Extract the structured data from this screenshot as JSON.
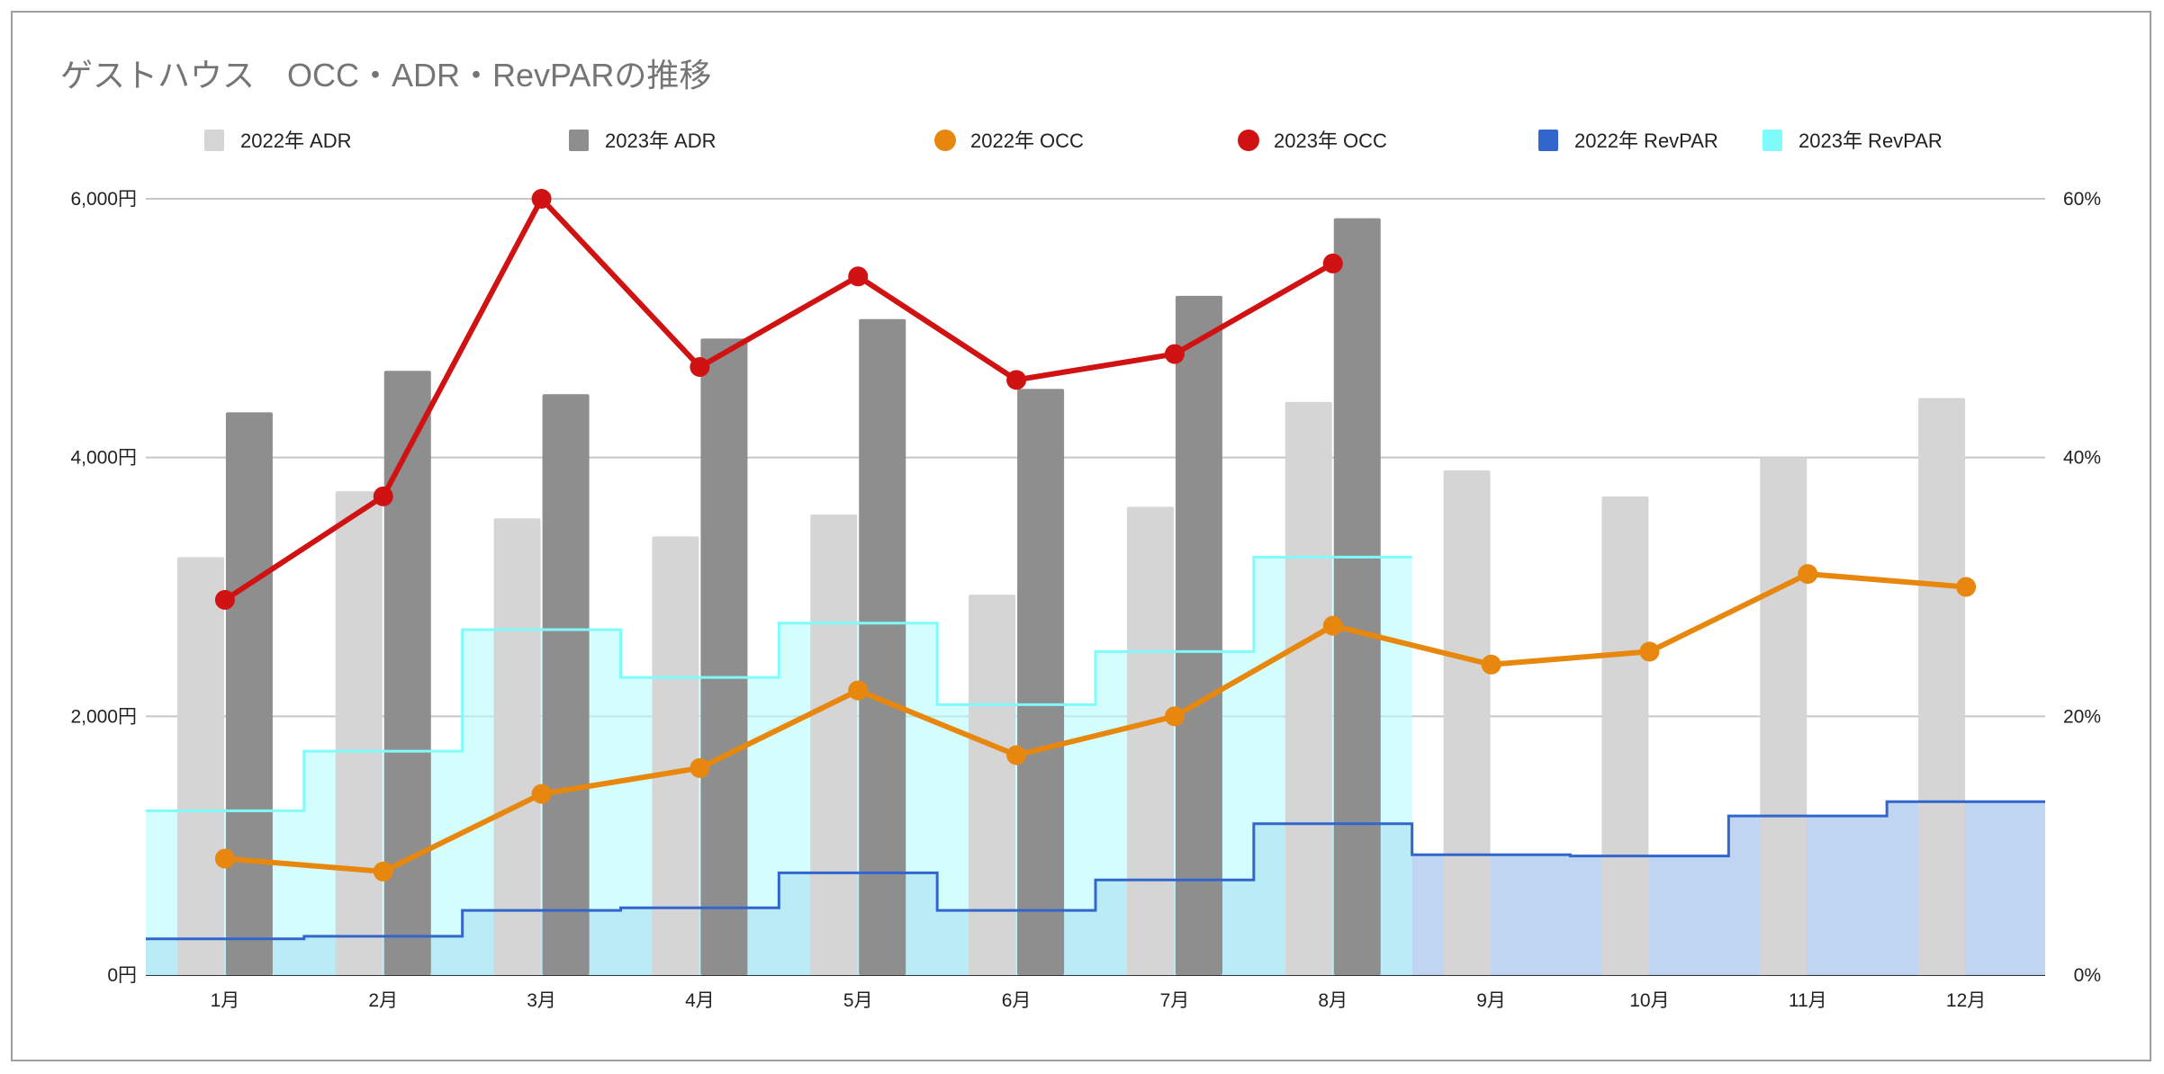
{
  "chart_data": {
    "type": "combo",
    "title": "ゲストハウス　OCC・ADR・RevPARの推移",
    "categories": [
      "1月",
      "2月",
      "3月",
      "4月",
      "5月",
      "6月",
      "7月",
      "8月",
      "9月",
      "10月",
      "11月",
      "12月"
    ],
    "left_axis": {
      "ylim": [
        0,
        6000
      ],
      "ticks": [
        0,
        2000,
        4000,
        6000
      ],
      "tick_labels": [
        "0円",
        "2,000円",
        "4,000円",
        "6,000円"
      ]
    },
    "right_axis": {
      "ylim": [
        0,
        60
      ],
      "ticks": [
        0,
        20,
        40,
        60
      ],
      "tick_labels": [
        "0%",
        "20%",
        "40%",
        "60%"
      ]
    },
    "grid": true,
    "legend_position": "top",
    "series": [
      {
        "name": "2022年 ADR",
        "type": "bar",
        "axis": "left",
        "color": "#d5d5d5",
        "values": [
          3230,
          3740,
          3530,
          3390,
          3560,
          2940,
          3620,
          4430,
          3900,
          3700,
          4000,
          4460
        ]
      },
      {
        "name": "2023年 ADR",
        "type": "bar",
        "axis": "left",
        "color": "#8e8e8e",
        "values": [
          4350,
          4670,
          4490,
          4920,
          5070,
          4530,
          5250,
          5850,
          null,
          null,
          null,
          null
        ]
      },
      {
        "name": "2022年 OCC",
        "type": "line",
        "axis": "right",
        "color": "#e8870e",
        "values": [
          9,
          8,
          14,
          16,
          22,
          17,
          20,
          27,
          24,
          25,
          31,
          30
        ]
      },
      {
        "name": "2023年 OCC",
        "type": "line",
        "axis": "right",
        "color": "#d01212",
        "values": [
          29,
          37,
          60,
          47,
          54,
          46,
          48,
          55,
          null,
          null,
          null,
          null
        ]
      },
      {
        "name": "2022年 RevPAR",
        "type": "stepped-area",
        "axis": "left",
        "color": "#3366cc",
        "values": [
          280,
          300,
          500,
          520,
          790,
          500,
          735,
          1170,
          930,
          920,
          1230,
          1340
        ]
      },
      {
        "name": "2023年 RevPAR",
        "type": "stepped-area",
        "axis": "left",
        "color": "#7ffbfb",
        "values": [
          1270,
          1730,
          2670,
          2300,
          2720,
          2090,
          2500,
          3230,
          null,
          null,
          null,
          null
        ]
      }
    ]
  }
}
